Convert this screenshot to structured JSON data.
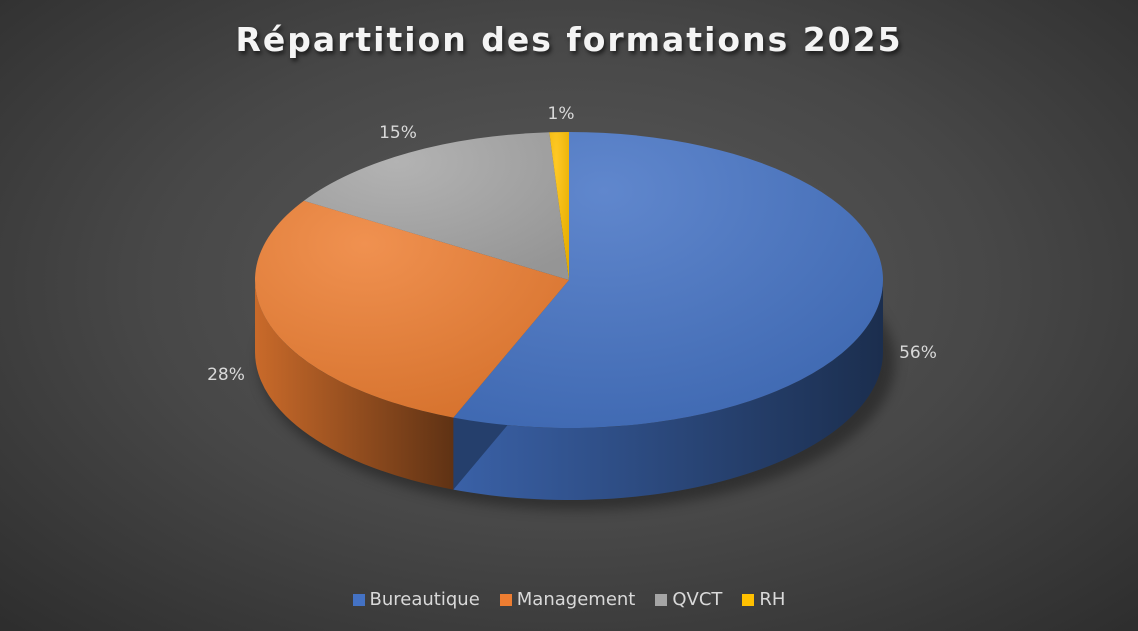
{
  "chart_data": {
    "type": "pie",
    "style": "3d",
    "title": "Répartition des formations 2025",
    "categories": [
      "Bureautique",
      "Management",
      "QVCT",
      "RH"
    ],
    "values": [
      56,
      28,
      15,
      1
    ],
    "labels": [
      "56%",
      "28%",
      "15%",
      "1%"
    ],
    "colors": [
      "#4472c4",
      "#ed7d31",
      "#a5a5a5",
      "#ffc000"
    ],
    "legend": "bottom"
  }
}
